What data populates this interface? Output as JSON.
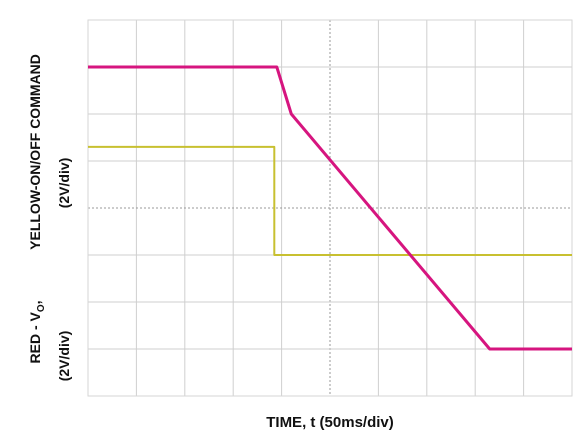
{
  "chart_data": {
    "type": "line",
    "xlabel": "TIME, t (50ms/div)",
    "ylabel_top": "YELLOW-ON/OFF COMMAND",
    "ylabel_top_unit": "(2V/div)",
    "ylabel_bottom": "RED - V",
    "ylabel_bottom_sub": "O",
    "ylabel_bottom_sep": ",",
    "ylabel_bottom_unit": "(2V/div)",
    "xlim": [
      0,
      10
    ],
    "ylim": [
      0,
      8
    ],
    "grid": true,
    "series": [
      {
        "color": "#d6157f",
        "points": [
          [
            0,
            7.0
          ],
          [
            3.9,
            7.0
          ],
          [
            4.2,
            6.0
          ],
          [
            8.3,
            1.0
          ],
          [
            10,
            1.0
          ]
        ]
      },
      {
        "color": "#c8c030",
        "points": [
          [
            0,
            5.3
          ],
          [
            3.85,
            5.3
          ],
          [
            3.85,
            3.0
          ],
          [
            10,
            3.0
          ]
        ]
      }
    ]
  }
}
